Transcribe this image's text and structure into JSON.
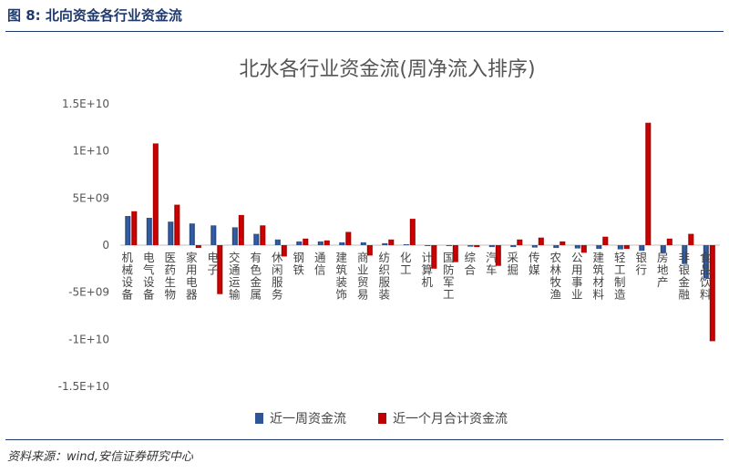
{
  "figure_label": "图 8:  北向资金各行业资金流",
  "source": "资料来源：wind,安信证券研究中心",
  "colors": {
    "weekly": "#2f5597",
    "monthly": "#c00000",
    "header": "#1f3a6d"
  },
  "chart_data": {
    "type": "bar",
    "title": "北水各行业资金流(周净流入排序)",
    "xlabel": "",
    "ylabel": "",
    "ylim": [
      -15000000000,
      15000000000
    ],
    "yticks": [
      {
        "value": 15000000000,
        "label": "1.5E+10"
      },
      {
        "value": 10000000000,
        "label": "1E+10"
      },
      {
        "value": 5000000000,
        "label": "5E+09"
      },
      {
        "value": 0,
        "label": "0"
      },
      {
        "value": -5000000000,
        "label": "-5E+09"
      },
      {
        "value": -10000000000,
        "label": "-1E+10"
      },
      {
        "value": -15000000000,
        "label": "-1.5E+10"
      }
    ],
    "grid": false,
    "legend_position": "bottom",
    "categories": [
      "机械设备",
      "电气设备",
      "医药生物",
      "家用电器",
      "电子",
      "交通运输",
      "有色金属",
      "休闲服务",
      "钢铁",
      "通信",
      "建筑装饰",
      "商业贸易",
      "纺织服装",
      "化工",
      "计算机",
      "国防军工",
      "综合",
      "汽车",
      "采掘",
      "传媒",
      "农林牧渔",
      "公用事业",
      "建筑材料",
      "轻工制造",
      "银行",
      "房地产",
      "非银金融",
      "食品饮料"
    ],
    "series": [
      {
        "name": "近一周资金流",
        "values": [
          3100000000,
          2900000000,
          2500000000,
          2300000000,
          2100000000,
          1900000000,
          1200000000,
          600000000,
          400000000,
          400000000,
          300000000,
          300000000,
          200000000,
          100000000,
          -100000000,
          -100000000,
          -150000000,
          -200000000,
          -200000000,
          -250000000,
          -300000000,
          -350000000,
          -400000000,
          -450000000,
          -600000000,
          -800000000,
          -2000000000,
          -3500000000
        ]
      },
      {
        "name": "近一个月合计资金流",
        "values": [
          3600000000,
          10800000000,
          4300000000,
          -300000000,
          -5200000000,
          3200000000,
          2100000000,
          -1200000000,
          700000000,
          500000000,
          1400000000,
          -1100000000,
          600000000,
          2800000000,
          -2500000000,
          -1800000000,
          -200000000,
          -2200000000,
          600000000,
          800000000,
          400000000,
          -800000000,
          900000000,
          -400000000,
          13000000000,
          700000000,
          1200000000,
          -10200000000
        ]
      }
    ]
  }
}
